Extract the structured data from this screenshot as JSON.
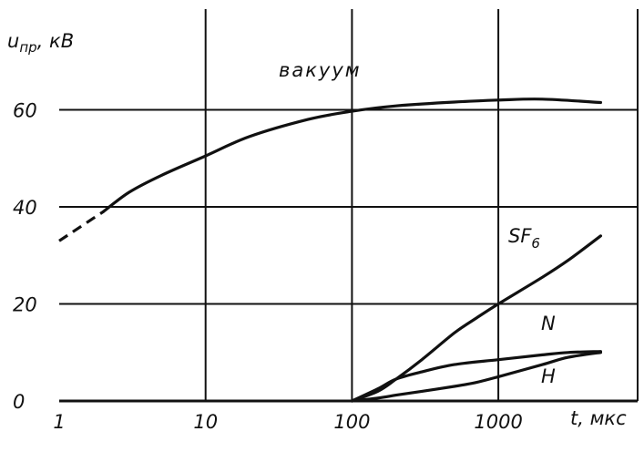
{
  "chart_data": {
    "type": "line",
    "x_scale": "log",
    "xlim": [
      1,
      5000
    ],
    "ylim": [
      0,
      70
    ],
    "grid": true,
    "x_ticks": [
      "1",
      "10",
      "100",
      "1000"
    ],
    "y_ticks": [
      "0",
      "20",
      "40",
      "60"
    ],
    "ylabel": "u_пр, кВ",
    "xlabel": "t, мкс",
    "series": [
      {
        "name": "вакуум",
        "x": [
          1,
          2,
          3,
          5,
          10,
          20,
          50,
          100,
          200,
          500,
          1000,
          2000,
          5000
        ],
        "y": [
          33,
          39,
          43,
          46.5,
          50.5,
          54.5,
          58,
          59.7,
          60.8,
          61.6,
          62,
          62.2,
          61.5
        ],
        "dashed_until_x": 2
      },
      {
        "name": "SF6",
        "x": [
          100,
          150,
          200,
          300,
          500,
          700,
          1000,
          2000,
          3000,
          5000
        ],
        "y": [
          0,
          2,
          4.5,
          8.5,
          14,
          17,
          20,
          25.5,
          29,
          34
        ]
      },
      {
        "name": "N",
        "x": [
          100,
          150,
          200,
          300,
          500,
          1000,
          2000,
          3000,
          5000
        ],
        "y": [
          0,
          2.5,
          4.5,
          6,
          7.5,
          8.5,
          9.5,
          10,
          10.2
        ]
      },
      {
        "name": "H",
        "x": [
          100,
          150,
          200,
          300,
          500,
          700,
          1000,
          2000,
          3000,
          5000
        ],
        "y": [
          0,
          0.6,
          1.2,
          2,
          3,
          3.8,
          5,
          7.5,
          9,
          10
        ]
      }
    ],
    "labels": {
      "vacuum": "вакуум",
      "sf6_main": "SF",
      "sf6_sub": "6",
      "n": "N",
      "h": "H",
      "y_axis": "u",
      "y_axis_sub": "пр",
      "y_axis_unit": ", кВ",
      "x_axis": "t",
      "x_axis_unit": ", мкс"
    }
  }
}
